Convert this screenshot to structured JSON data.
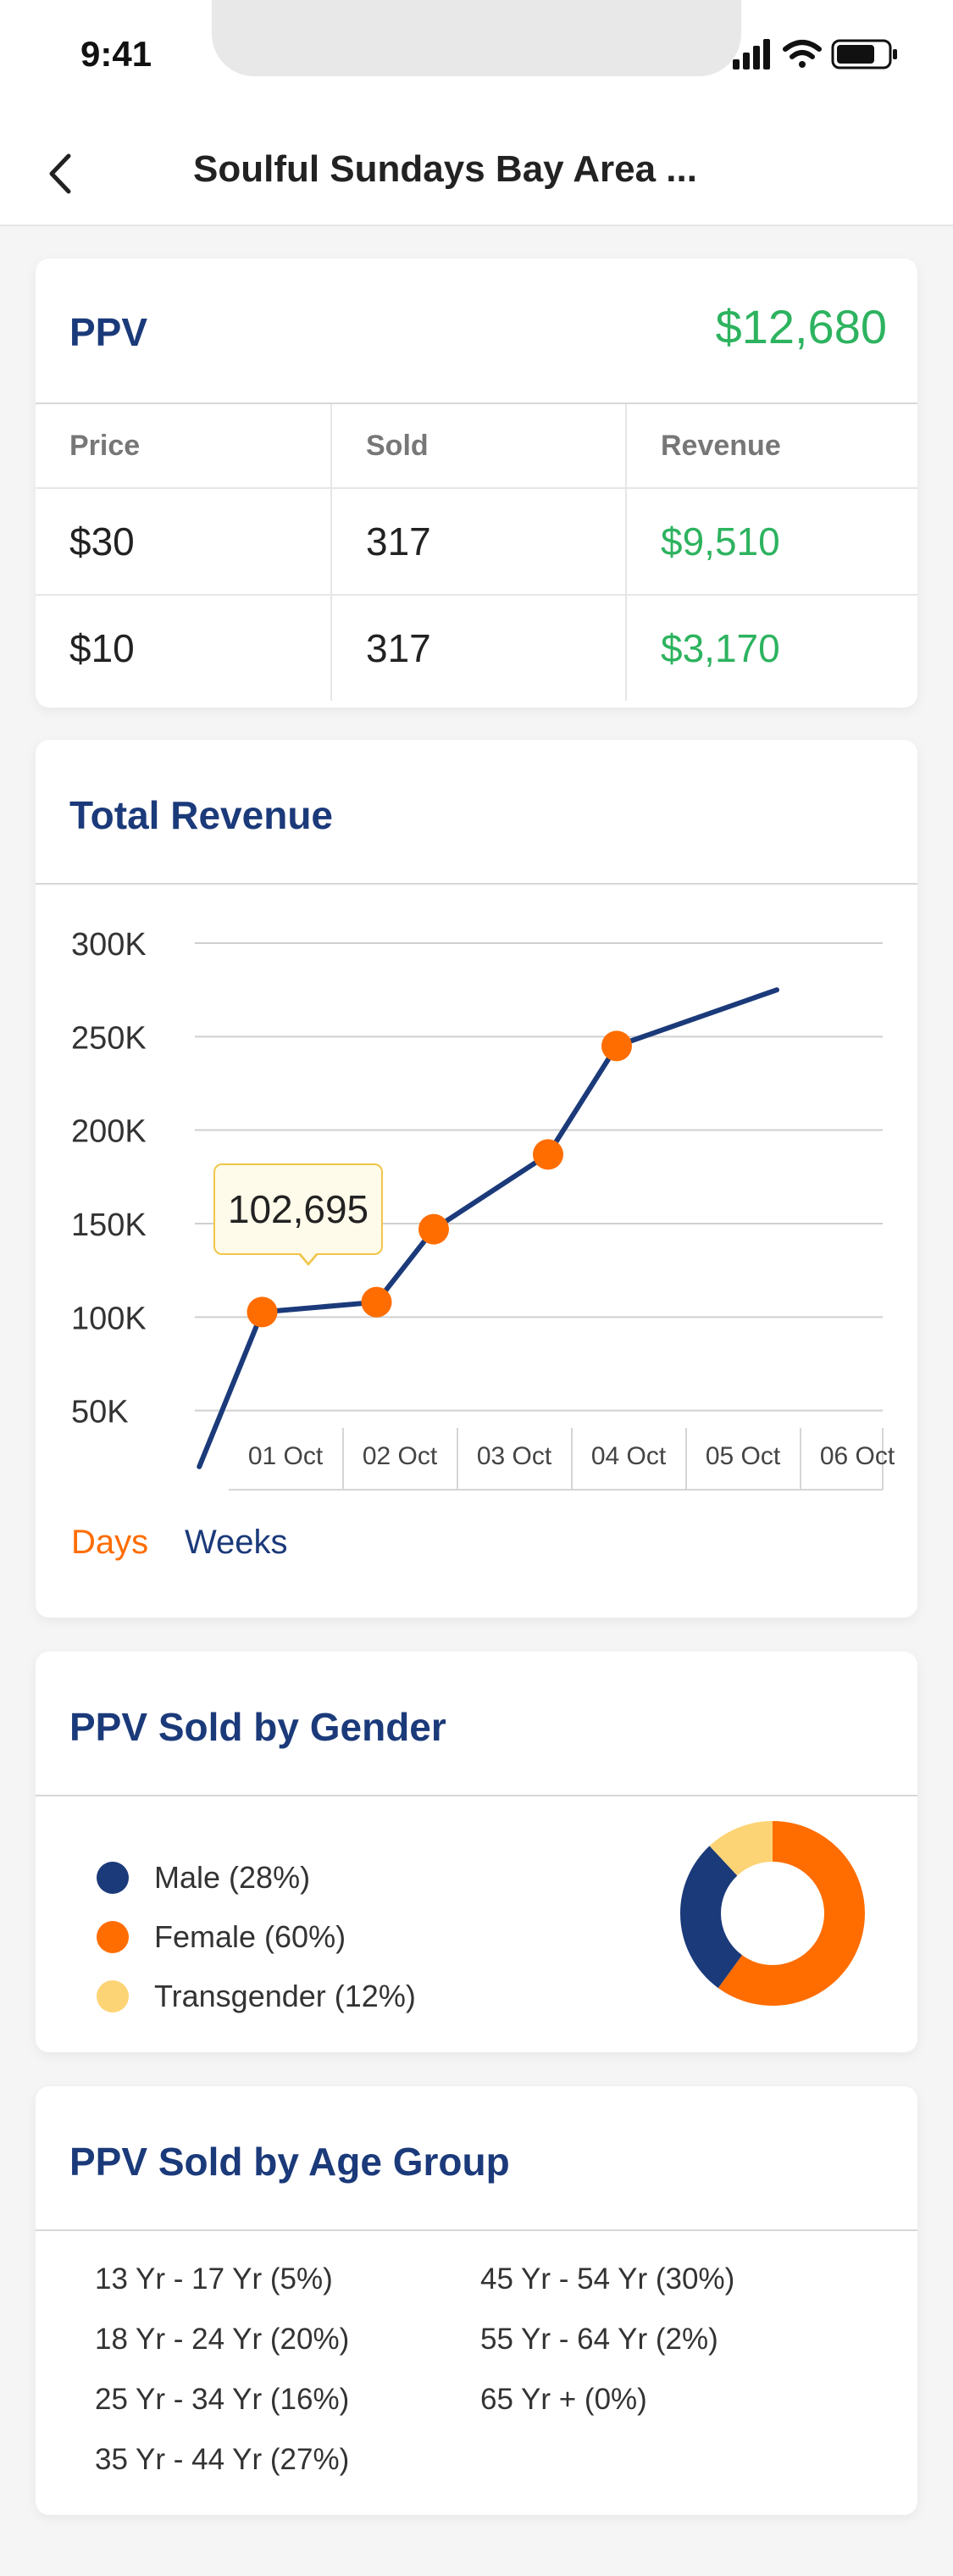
{
  "status_bar": {
    "time": "9:41"
  },
  "nav": {
    "title": "Soulful Sundays Bay Area ..."
  },
  "ppv": {
    "title": "PPV",
    "total": "$12,680",
    "headers": [
      "Price",
      "Sold",
      "Revenue"
    ],
    "rows": [
      {
        "price": "$30",
        "sold": "317",
        "revenue": "$9,510"
      },
      {
        "price": "$10",
        "sold": "317",
        "revenue": "$3,170"
      }
    ]
  },
  "revenue": {
    "title": "Total Revenue",
    "tabs": {
      "active": "Days",
      "inactive": "Weeks"
    },
    "tooltip": "102,695"
  },
  "chart_data": {
    "type": "line",
    "title": "Total Revenue",
    "categories": [
      "01 Oct",
      "02 Oct",
      "03 Oct",
      "04 Oct",
      "05 Oct",
      "06 Oct"
    ],
    "y_ticks": [
      "50K",
      "100K",
      "150K",
      "200K",
      "250K",
      "300K"
    ],
    "ylim": [
      0,
      300000
    ],
    "grid": true,
    "series": [
      {
        "x": [
          0.95,
          1.5,
          2.5,
          3.0,
          4.0,
          4.6,
          6.0
        ],
        "y": [
          20000,
          102695,
          108000,
          147000,
          187000,
          245000,
          275000
        ],
        "markers": [
          false,
          true,
          true,
          true,
          true,
          true,
          false
        ],
        "color": "#1b3a7a",
        "marker_color": "#ff6d00"
      }
    ]
  },
  "gender": {
    "title": "PPV Sold by Gender",
    "legend": [
      {
        "label": "Male (28%)",
        "value": 28,
        "color": "#1b3a7a"
      },
      {
        "label": "Female (60%)",
        "value": 60,
        "color": "#ff6d00"
      },
      {
        "label": "Transgender (12%)",
        "value": 12,
        "color": "#fdd475"
      }
    ]
  },
  "age": {
    "title": "PPV Sold by Age Group",
    "left": [
      "13 Yr - 17 Yr (5%)",
      "18 Yr - 24 Yr (20%)",
      "25 Yr - 34 Yr (16%)",
      "35 Yr - 44 Yr (27%)"
    ],
    "right": [
      "45 Yr - 54 Yr (30%)",
      "55 Yr - 64 Yr (2%)",
      "65 Yr + (0%)"
    ]
  },
  "colors": {
    "primary": "#1b3a7a",
    "accent": "#ff6d00",
    "positive": "#2db35f"
  },
  "icons": [
    "back-chevron-icon",
    "signal-icon",
    "wifi-icon",
    "battery-icon"
  ]
}
